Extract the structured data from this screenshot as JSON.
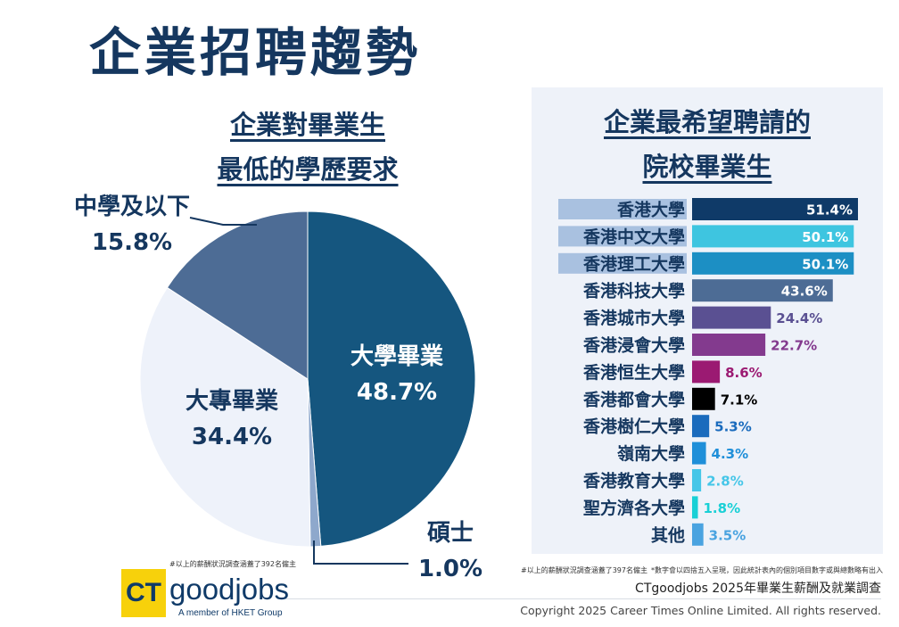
{
  "title": "企業招聘趨勢",
  "chart_data": [
    {
      "type": "pie",
      "title_line1": "企業對畢業生",
      "title_line2": "最低的學歷要求",
      "labels": [
        "大學畢業",
        "碩士",
        "大專畢業",
        "中學及以下"
      ],
      "values": [
        48.7,
        1.0,
        34.4,
        15.8
      ],
      "value_labels": [
        "48.7%",
        "1.0%",
        "34.4%",
        "15.8%"
      ],
      "colors": [
        "#15567f",
        "#8ea8cc",
        "#eef2fa",
        "#4d6c95"
      ]
    },
    {
      "type": "bar",
      "orientation": "horizontal",
      "title_line1": "企業最希望聘請的",
      "title_line2": "院校畢業生",
      "categories": [
        "香港大學",
        "香港中文大學",
        "香港理工大學",
        "香港科技大學",
        "香港城市大學",
        "香港浸會大學",
        "香港恒生大學",
        "香港都會大學",
        "香港樹仁大學",
        "嶺南大學",
        "香港教育大學",
        "聖方濟各大學",
        "其他"
      ],
      "values": [
        51.4,
        50.1,
        50.1,
        43.6,
        24.4,
        22.7,
        8.6,
        7.1,
        5.3,
        4.3,
        2.8,
        1.8,
        3.5
      ],
      "value_labels": [
        "51.4%",
        "50.1%",
        "50.1%",
        "43.6%",
        "24.4%",
        "22.7%",
        "8.6%",
        "7.1%",
        "5.3%",
        "4.3%",
        "2.8%",
        "1.8%",
        "3.5%"
      ],
      "colors": [
        "#0f3a68",
        "#3ec5e0",
        "#1c8fc4",
        "#4d6c95",
        "#5a5092",
        "#833a8e",
        "#9b1a72",
        "#000000",
        "#1a6bbd",
        "#1f8fd9",
        "#45c6e8",
        "#19d0d6",
        "#4aa3e0"
      ],
      "highlighted_labels": [
        0,
        1,
        2
      ]
    }
  ],
  "footnotes": {
    "pie": "#以上的薪酬狀況調查涵蓋了392名僱主",
    "bar": "#以上的薪酬狀況調查涵蓋了397名僱主",
    "rounding": "*數字會以四捨五入呈現，因此統計表內的個別項目數字或與總數略有出入"
  },
  "survey_name": "CTgoodjobs 2025年畢業生薪酬及就業調查",
  "copyright": "Copyright 2025 Career Times Online Limited. All rights reserved.",
  "logo": {
    "ct": "CT",
    "name": "goodjobs",
    "tagline": "A member of HKET Group"
  }
}
